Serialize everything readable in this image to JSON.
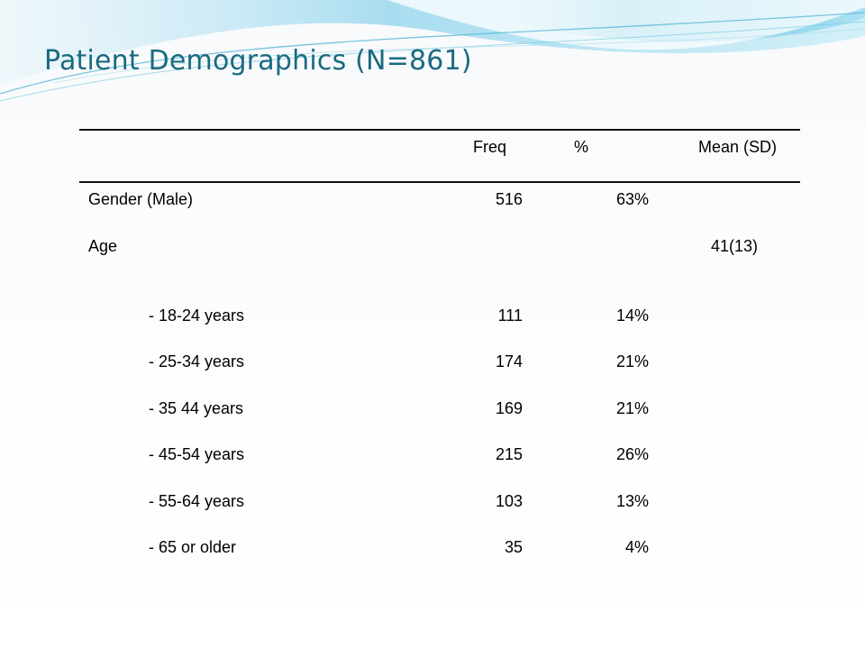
{
  "slide": {
    "title": "Patient Demographics (N=861)"
  },
  "colors": {
    "title": "#1a6a80",
    "wave_light": "#bfe6f2",
    "wave_mid": "#8fd3ea",
    "wave_dark": "#3fa9cf",
    "rule": "#111111"
  },
  "table": {
    "headers": {
      "label": "",
      "freq": "Freq",
      "pct": "%",
      "mean": "Mean (SD)"
    },
    "rows": [
      {
        "label": "Gender (Male)",
        "freq": "516",
        "pct": "63%",
        "mean": ""
      },
      {
        "label": "Age",
        "freq": "",
        "pct": "",
        "mean": "41(13)"
      },
      {
        "label": "- 18-24 years",
        "freq": "111",
        "pct": "14%",
        "mean": ""
      },
      {
        "label": "- 25-34 years",
        "freq": "174",
        "pct": "21%",
        "mean": ""
      },
      {
        "label": "- 35 44 years",
        "freq": "169",
        "pct": "21%",
        "mean": ""
      },
      {
        "label": "- 45-54 years",
        "freq": "215",
        "pct": "26%",
        "mean": ""
      },
      {
        "label": "- 55-64 years",
        "freq": "103",
        "pct": "13%",
        "mean": ""
      },
      {
        "label": "- 65 or older",
        "freq": "35",
        "pct": "4%",
        "mean": ""
      }
    ]
  }
}
